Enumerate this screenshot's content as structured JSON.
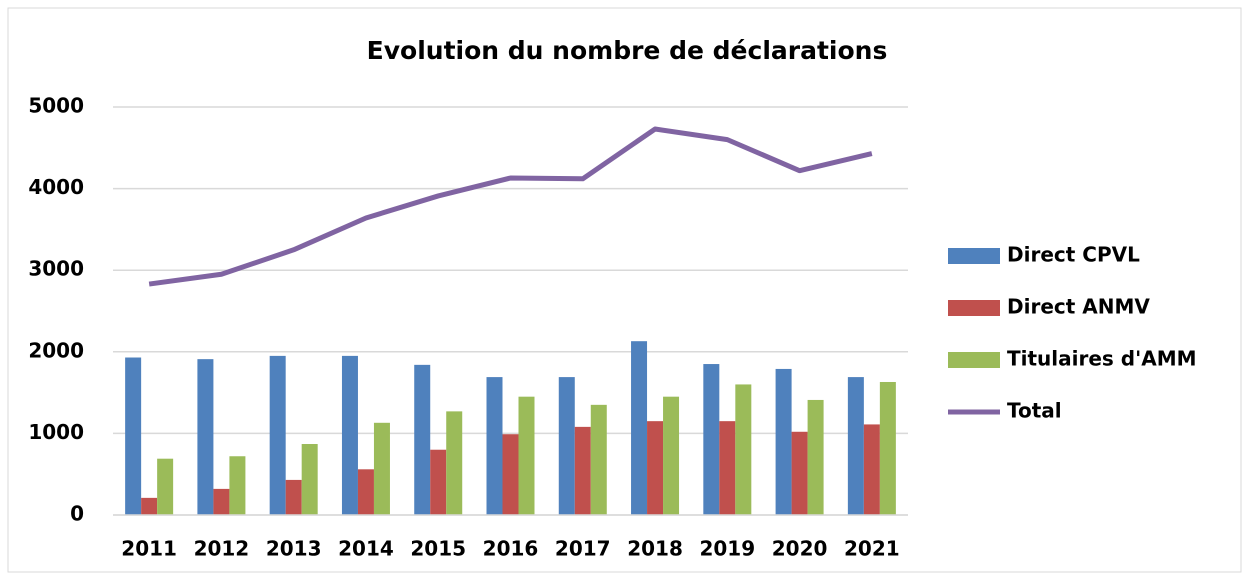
{
  "chart_data": {
    "type": "bar",
    "title": "Evolution du nombre de déclarations",
    "categories": [
      "2011",
      "2012",
      "2013",
      "2014",
      "2015",
      "2016",
      "2017",
      "2018",
      "2019",
      "2020",
      "2021"
    ],
    "series": [
      {
        "name": "Direct CPVL",
        "color": "#4f81bd",
        "values": [
          1930,
          1910,
          1950,
          1950,
          1840,
          1690,
          1690,
          2130,
          1850,
          1790,
          1690
        ]
      },
      {
        "name": "Direct ANMV",
        "color": "#c0504d",
        "values": [
          210,
          320,
          430,
          560,
          800,
          990,
          1080,
          1150,
          1150,
          1020,
          1110
        ]
      },
      {
        "name": "Titulaires d'AMM",
        "color": "#9bbb59",
        "values": [
          690,
          720,
          870,
          1130,
          1270,
          1450,
          1350,
          1450,
          1600,
          1410,
          1630
        ]
      },
      {
        "name": "Total",
        "type": "line",
        "color": "#8064a2",
        "values": [
          2830,
          2950,
          3250,
          3640,
          3910,
          4130,
          4120,
          4730,
          4600,
          4220,
          4430
        ]
      }
    ],
    "ylim": [
      0,
      5000
    ],
    "yticks": [
      0,
      1000,
      2000,
      3000,
      4000,
      5000
    ],
    "grid": true,
    "legend": "right"
  }
}
